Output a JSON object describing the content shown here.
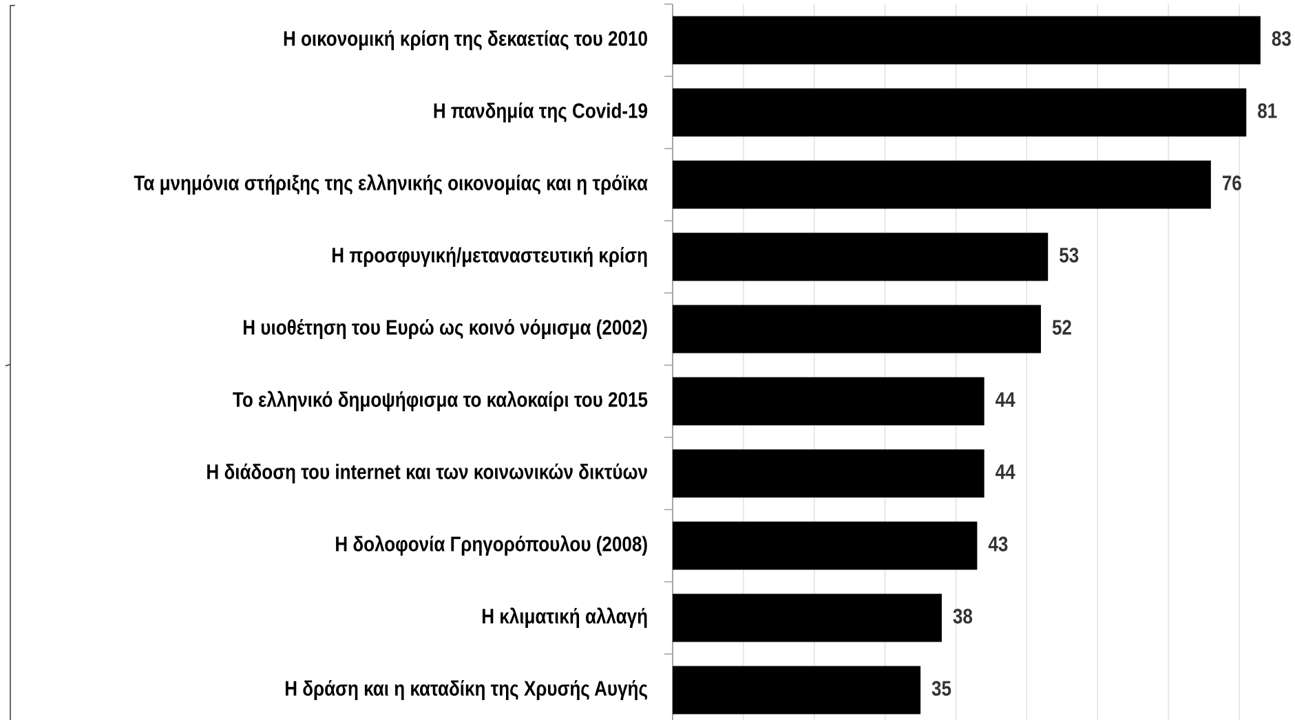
{
  "chart_data": {
    "type": "bar",
    "orientation": "horizontal",
    "categories": [
      "Η οικονομική κρίση της δεκαετίας του 2010",
      "Η πανδημία της Covid-19",
      "Τα μνημόνια στήριξης της ελληνικής οικονομίας και η τρόϊκα",
      "Η προσφυγική/μεταναστευτική κρίση",
      "Η υιοθέτηση του Ευρώ ως κοινό νόμισμα (2002)",
      "Το ελληνικό δημοψήφισμα το καλοκαίρι του 2015",
      "Η διάδοση του internet και των κοινωνικών δικτύων",
      "Η δολοφονία Γρηγορόπουλου (2008)",
      "Η κλιματική αλλαγή",
      "Η δράση και η καταδίκη της Χρυσής Αυγής"
    ],
    "values": [
      83,
      81,
      76,
      53,
      52,
      44,
      44,
      43,
      38,
      35
    ],
    "color": "#000000",
    "xlim": [
      0,
      87
    ],
    "xticks": [
      0,
      10,
      20,
      30,
      40,
      50,
      60,
      70,
      80
    ],
    "grid": true
  }
}
